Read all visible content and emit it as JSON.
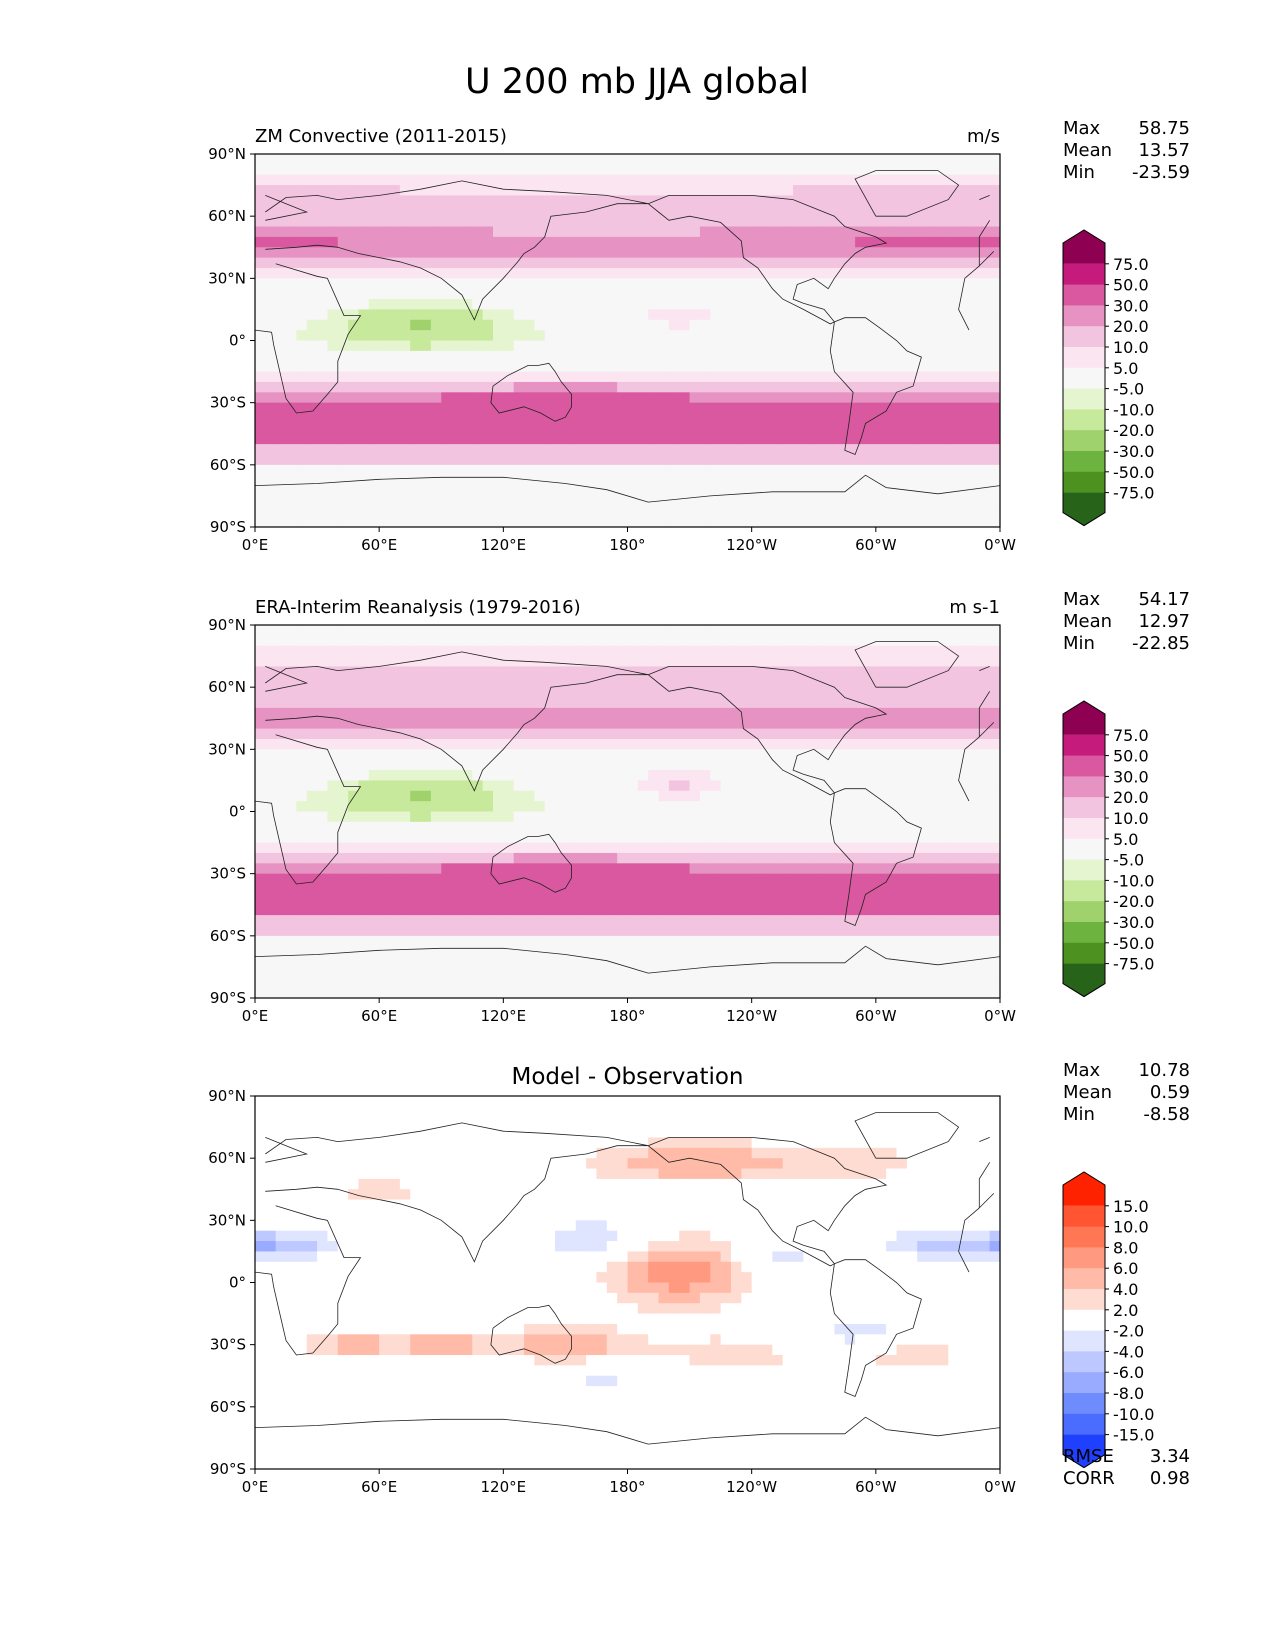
{
  "figure_title": "U 200 mb JJA global",
  "chart_data": [
    {
      "type": "heatmap",
      "panel": "test",
      "title_left": "ZM Convective (2011-2015)",
      "title_center": "",
      "units": "m/s",
      "stats": {
        "Max": "58.75",
        "Mean": "13.57",
        "Min": "-23.59"
      },
      "colorbar_levels": [
        "75.0",
        "50.0",
        "30.0",
        "20.0",
        "10.0",
        "5.0",
        "-5.0",
        "-10.0",
        "-20.0",
        "-30.0",
        "-50.0",
        "-75.0"
      ],
      "colors": [
        "#8e0152",
        "#c51b7d",
        "#d9589f",
        "#e692c2",
        "#f2c4e0",
        "#fbe5f1",
        "#f7f7f7",
        "#e5f5cf",
        "#c6e99b",
        "#9fd26d",
        "#6db33f",
        "#4d9221",
        "#276419"
      ],
      "map_fields": {
        "anomalies": [
          {
            "lon": 345,
            "lat": 52,
            "ampLon": 55,
            "ampLat": 9,
            "amp": 8
          },
          {
            "lon": 220,
            "lat": 20,
            "ampLon": 30,
            "ampLat": 8,
            "amp": -3
          }
        ]
      }
    },
    {
      "type": "heatmap",
      "panel": "reference",
      "title_left": "ERA-Interim Reanalysis (1979-2016)",
      "title_center": "",
      "units": "m s-1",
      "stats": {
        "Max": "54.17",
        "Mean": "12.97",
        "Min": "-22.85"
      },
      "colorbar_levels": [
        "75.0",
        "50.0",
        "30.0",
        "20.0",
        "10.0",
        "5.0",
        "-5.0",
        "-10.0",
        "-20.0",
        "-30.0",
        "-50.0",
        "-75.0"
      ],
      "colors": [
        "#8e0152",
        "#c51b7d",
        "#d9589f",
        "#e692c2",
        "#f2c4e0",
        "#fbe5f1",
        "#f7f7f7",
        "#e5f5cf",
        "#c6e99b",
        "#9fd26d",
        "#6db33f",
        "#4d9221",
        "#276419"
      ],
      "map_fields": {
        "anomalies": []
      }
    },
    {
      "type": "heatmap",
      "panel": "difference",
      "title_left": "",
      "title_center": "Model - Observation",
      "units": "",
      "stats": {
        "Max": "10.78",
        "Mean": "0.59",
        "Min": "-8.58"
      },
      "metrics": {
        "RMSE": "3.34",
        "CORR": "0.98"
      },
      "colorbar_levels": [
        "15.0",
        "10.0",
        "8.0",
        "6.0",
        "4.0",
        "2.0",
        "-2.0",
        "-4.0",
        "-6.0",
        "-8.0",
        "-10.0",
        "-15.0"
      ],
      "colors": [
        "#ff2200",
        "#ff5533",
        "#ff7755",
        "#ff9980",
        "#ffbba8",
        "#ffdcd2",
        "#ffffff",
        "#dfe4ff",
        "#bcc8ff",
        "#99abff",
        "#6f8cff",
        "#4a6cff",
        "#1f40ff"
      ]
    }
  ],
  "axes": {
    "x_ticks": [
      "0°E",
      "60°E",
      "120°E",
      "180°",
      "120°W",
      "60°W",
      "0°W"
    ],
    "y_ticks": [
      "90°N",
      "60°N",
      "30°N",
      "0°",
      "30°S",
      "60°S",
      "90°S"
    ],
    "x_range_deg_east": [
      0,
      360
    ],
    "y_range_deg": [
      -90,
      90
    ]
  }
}
